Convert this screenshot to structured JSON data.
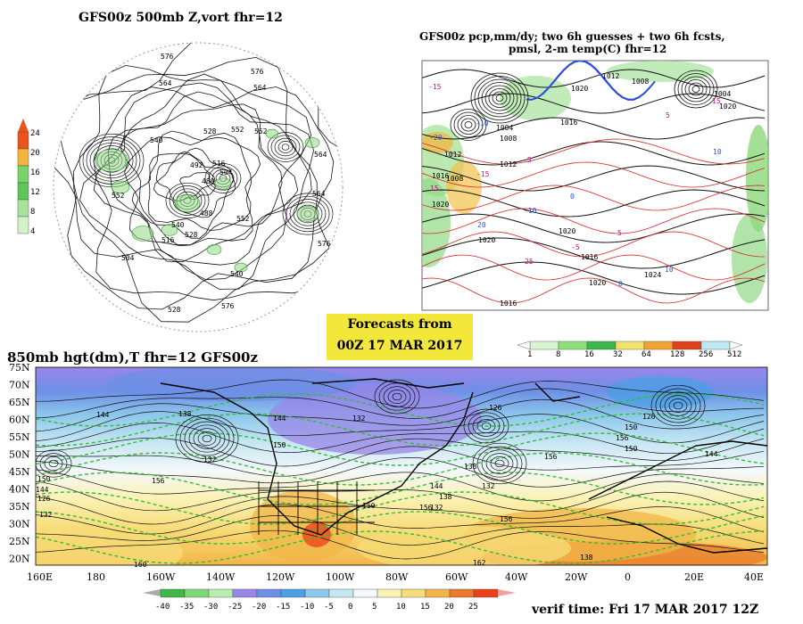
{
  "titles": {
    "z500": "GFS00z  500mb Z,vort    fhr=12",
    "pcp_line1": "GFS00z pcp,mm/dy; two 6h guesses + two 6h fcsts,",
    "pcp_line2": "pmsl, 2-m temp(C)  fhr=12",
    "h850": "850mb hgt(dm),T  fhr=12 GFS00z",
    "forecast_line1": "Forecasts from",
    "forecast_line2": "00Z 17 MAR 2017",
    "verif": "verif time: Fri 17 MAR 2017 12Z"
  },
  "vort_scale": {
    "labels": [
      "24",
      "20",
      "16",
      "12",
      "8",
      "4"
    ],
    "colors": [
      "#e8541a",
      "#f3b43a",
      "#7ad36a",
      "#5fc55a",
      "#a6e29a",
      "#d4f1c8"
    ]
  },
  "pcp_scale": {
    "labels": [
      "1",
      "8",
      "16",
      "32",
      "64",
      "128",
      "256",
      "512"
    ],
    "colors": [
      "#d8f5d2",
      "#8fe07d",
      "#3bb84a",
      "#f1e26e",
      "#f0a332",
      "#e1421c",
      "#bfeaf5"
    ]
  },
  "temp_scale": {
    "labels": [
      "-40",
      "-35",
      "-30",
      "-25",
      "-20",
      "-15",
      "-10",
      "-5",
      "0",
      "5",
      "10",
      "15",
      "20",
      "25"
    ],
    "colors": [
      "#3fb845",
      "#80d87a",
      "#b8ecb0",
      "#9a86e8",
      "#6e8fe6",
      "#4b9fe5",
      "#8cc7ec",
      "#c6e6f3",
      "#f3f8fb",
      "#fbf2b6",
      "#f7dc78",
      "#f2b548",
      "#e97a2a",
      "#ee3f16"
    ]
  },
  "z500_labels": [
    "576",
    "576",
    "564",
    "564",
    "552",
    "540",
    "528",
    "516",
    "504",
    "492",
    "480",
    "488",
    "552",
    "540",
    "528",
    "516",
    "504",
    "564",
    "576",
    "552",
    "540",
    "528",
    "576",
    "564",
    "552"
  ],
  "pcp_labels": [
    "1004",
    "1008",
    "1012",
    "1016",
    "1020",
    "1020",
    "1016",
    "1020",
    "1024",
    "1008",
    "1012",
    "1016",
    "1020",
    "1020",
    "1004",
    "1008",
    "1012",
    "1016",
    "1020",
    "-15",
    "-10",
    "-5",
    "0",
    "5",
    "10",
    "15",
    "-20",
    "-15",
    "-10",
    "-5",
    "0",
    "5",
    "10",
    "15",
    "20",
    "25"
  ],
  "h850_labels": [
    "144",
    "138",
    "132",
    "144",
    "132",
    "126",
    "150",
    "132",
    "138",
    "150",
    "156",
    "144",
    "138",
    "132",
    "126",
    "156",
    "150",
    "156",
    "162",
    "156",
    "150",
    "144",
    "126",
    "132",
    "138",
    "160",
    "156",
    "150",
    "144"
  ],
  "lat_labels": [
    "75N",
    "70N",
    "65N",
    "60N",
    "55N",
    "50N",
    "45N",
    "40N",
    "35N",
    "30N",
    "25N",
    "20N"
  ],
  "lon_labels": [
    "160E",
    "180",
    "160W",
    "140W",
    "120W",
    "100W",
    "80W",
    "60W",
    "40W",
    "20W",
    "0",
    "20E",
    "40E"
  ]
}
